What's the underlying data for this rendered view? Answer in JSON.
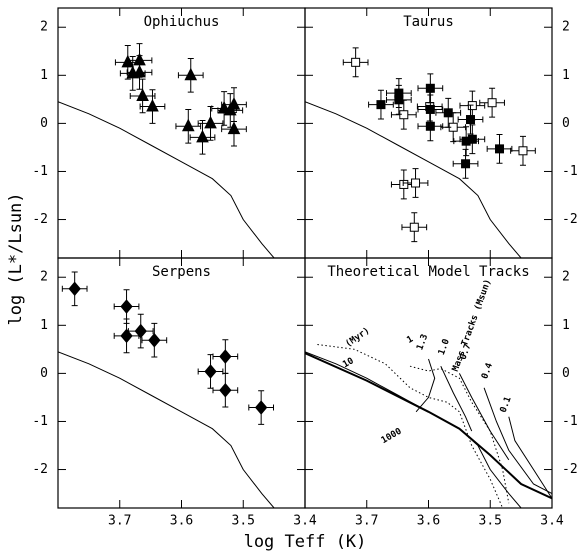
{
  "figure": {
    "xlabel": "log Teff (K)",
    "ylabel": "log (L*/Lsun)"
  },
  "zams": {
    "x": [
      3.8,
      3.75,
      3.7,
      3.65,
      3.6,
      3.55,
      3.52,
      3.5,
      3.47,
      3.45
    ],
    "y": [
      0.45,
      0.2,
      -0.1,
      -0.45,
      -0.8,
      -1.15,
      -1.5,
      -2.0,
      -2.5,
      -2.8
    ]
  },
  "chart_data": [
    {
      "type": "scatter",
      "title": "Ophiuchus",
      "xlim": [
        3.8,
        3.4
      ],
      "ylim": [
        -2.8,
        2.4
      ],
      "xticks": [
        3.7,
        3.6,
        3.5,
        3.4
      ],
      "yticks": [
        2,
        1,
        0,
        -1,
        -2
      ],
      "model_line": true,
      "series": [
        {
          "marker": "triangle",
          "filled": true,
          "color": "#000000",
          "xerr": 0.02,
          "yerr": 0.35,
          "x": [
            3.687,
            3.679,
            3.668,
            3.668,
            3.663,
            3.647,
            3.585,
            3.589,
            3.566,
            3.553,
            3.531,
            3.521,
            3.515,
            3.515
          ],
          "y": [
            1.27,
            1.04,
            1.31,
            1.06,
            0.57,
            0.35,
            1.0,
            -0.06,
            -0.29,
            0.0,
            0.31,
            0.27,
            0.39,
            -0.12
          ]
        }
      ]
    },
    {
      "type": "scatter",
      "title": "Taurus",
      "xlim": [
        3.8,
        3.4
      ],
      "ylim": [
        -2.8,
        2.4
      ],
      "xticks": [
        3.7,
        3.6,
        3.5,
        3.4
      ],
      "yticks": [
        2,
        1,
        0,
        -1,
        -2
      ],
      "model_line": true,
      "series": [
        {
          "marker": "square",
          "filled": false,
          "color": "#000000",
          "xerr": 0.02,
          "yerr": 0.3,
          "x": [
            3.718,
            3.64,
            3.621,
            3.623,
            3.64,
            3.598,
            3.56,
            3.529,
            3.497,
            3.447
          ],
          "y": [
            1.27,
            -1.27,
            -1.24,
            -2.16,
            0.18,
            0.35,
            -0.08,
            0.37,
            0.43,
            -0.57
          ]
        },
        {
          "marker": "square",
          "filled": true,
          "color": "#000000",
          "xerr": 0.02,
          "yerr": 0.3,
          "x": [
            3.677,
            3.648,
            3.648,
            3.597,
            3.597,
            3.597,
            3.568,
            3.532,
            3.539,
            3.529,
            3.54,
            3.485
          ],
          "y": [
            0.39,
            0.63,
            0.49,
            0.73,
            0.29,
            -0.06,
            0.22,
            0.08,
            -0.37,
            -0.33,
            -0.84,
            -0.53
          ]
        }
      ]
    },
    {
      "type": "scatter",
      "title": "Serpens",
      "xlim": [
        3.8,
        3.4
      ],
      "ylim": [
        -2.8,
        2.4
      ],
      "xticks": [
        3.7,
        3.6,
        3.5,
        3.4
      ],
      "yticks": [
        2,
        1,
        0,
        -1,
        -2
      ],
      "model_line": true,
      "series": [
        {
          "marker": "diamond",
          "filled": true,
          "color": "#000000",
          "xerr": 0.02,
          "yerr": 0.35,
          "x": [
            3.773,
            3.689,
            3.689,
            3.666,
            3.644,
            3.553,
            3.529,
            3.529,
            3.471
          ],
          "y": [
            1.76,
            1.39,
            0.78,
            0.88,
            0.69,
            0.04,
            0.35,
            -0.35,
            -0.71
          ]
        }
      ]
    },
    {
      "type": "line",
      "title": "Theoretical Model Tracks",
      "xlim": [
        3.8,
        3.4
      ],
      "ylim": [
        -2.8,
        2.4
      ],
      "xticks": [
        3.7,
        3.6,
        3.5,
        3.4
      ],
      "yticks": [
        2,
        1,
        0,
        -1,
        -2
      ],
      "model_line": true,
      "annotations": [
        "(Myr)",
        "Mass Tracks (Msun)"
      ],
      "series": [
        {
          "label": "1000",
          "style": "solid",
          "width": 2,
          "color": "#000000",
          "x": [
            3.8,
            3.7,
            3.6,
            3.55,
            3.5,
            3.45,
            3.4
          ],
          "y": [
            0.42,
            -0.15,
            -0.8,
            -1.15,
            -1.7,
            -2.3,
            -2.6
          ]
        },
        {
          "label": "10",
          "style": "dotted",
          "width": 1,
          "color": "#000000",
          "x": [
            3.78,
            3.72,
            3.67,
            3.63,
            3.6,
            3.57,
            3.55,
            3.53,
            3.5,
            3.48
          ],
          "y": [
            0.6,
            0.5,
            0.2,
            -0.3,
            -0.5,
            -0.6,
            -0.8,
            -1.5,
            -2.2,
            -2.8
          ]
        },
        {
          "label": "1",
          "style": "dotted",
          "width": 1,
          "color": "#000000",
          "x": [
            3.63,
            3.6,
            3.58,
            3.55,
            3.53,
            3.5,
            3.48,
            3.47
          ],
          "y": [
            0.15,
            0.05,
            0.1,
            -0.1,
            -0.6,
            -1.2,
            -2.0,
            -2.7
          ]
        },
        {
          "label": "1.3",
          "style": "solid",
          "width": 1,
          "color": "#000000",
          "x": [
            3.6,
            3.59,
            3.6,
            3.62
          ],
          "y": [
            0.3,
            -0.1,
            -0.5,
            -0.8
          ]
        },
        {
          "label": "1.0",
          "style": "solid",
          "width": 1,
          "color": "#000000",
          "x": [
            3.58,
            3.56,
            3.54,
            3.53
          ],
          "y": [
            0.15,
            -0.4,
            -0.9,
            -1.2
          ]
        },
        {
          "label": "0.7",
          "style": "solid",
          "width": 1,
          "color": "#000000",
          "x": [
            3.55,
            3.53,
            3.5,
            3.47
          ],
          "y": [
            0.0,
            -0.5,
            -1.2,
            -1.8
          ]
        },
        {
          "label": "0.4",
          "style": "solid",
          "width": 1,
          "color": "#000000",
          "x": [
            3.51,
            3.49,
            3.47,
            3.43,
            3.4
          ],
          "y": [
            -0.3,
            -1.0,
            -1.6,
            -2.3,
            -2.5
          ]
        },
        {
          "label": "0.1",
          "style": "solid",
          "width": 1,
          "color": "#000000",
          "x": [
            3.47,
            3.46,
            3.43,
            3.4
          ],
          "y": [
            -0.9,
            -1.4,
            -2.0,
            -2.6
          ]
        }
      ]
    }
  ]
}
